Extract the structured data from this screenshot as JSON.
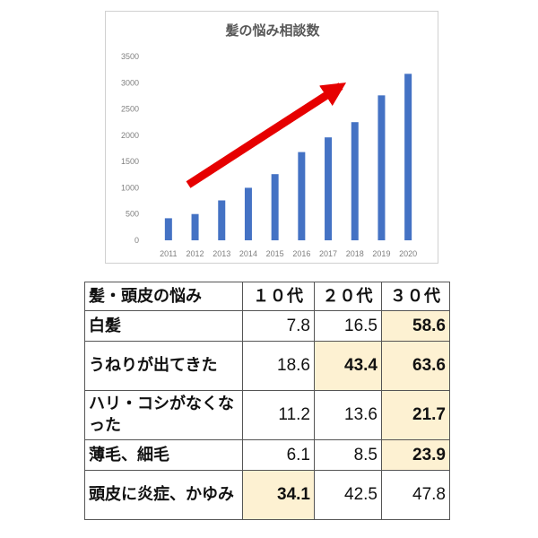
{
  "chart_data": {
    "type": "bar",
    "title": "髪の悩み相談数",
    "categories": [
      "2011",
      "2012",
      "2013",
      "2014",
      "2015",
      "2016",
      "2017",
      "2018",
      "2019",
      "2020"
    ],
    "values": [
      420,
      500,
      760,
      1000,
      1260,
      1680,
      1960,
      2250,
      2760,
      3170
    ],
    "ylim": [
      0,
      3500
    ],
    "yticks": [
      "0",
      "500",
      "1000",
      "1500",
      "2000",
      "2500",
      "3000",
      "3500"
    ],
    "grid": false,
    "bar_color": "#4472c4",
    "annotation": {
      "type": "arrow",
      "color": "#e60000",
      "meaning": "increasing trend"
    }
  },
  "table": {
    "headers": [
      "髪・頭皮の悩み",
      "１０代",
      "２０代",
      "３０代"
    ],
    "rows": [
      {
        "label": "白髪",
        "values": [
          "7.8",
          "16.5",
          "58.6"
        ],
        "highlight": [
          false,
          false,
          true
        ]
      },
      {
        "label": "うねりが出てきた",
        "values": [
          "18.6",
          "43.4",
          "63.6"
        ],
        "highlight": [
          false,
          true,
          true
        ]
      },
      {
        "label": "ハリ・コシがなくなった",
        "values": [
          "11.2",
          "13.6",
          "21.7"
        ],
        "highlight": [
          false,
          false,
          true
        ]
      },
      {
        "label": "薄毛、細毛",
        "values": [
          "6.1",
          "8.5",
          "23.9"
        ],
        "highlight": [
          false,
          false,
          true
        ]
      },
      {
        "label": "頭皮に炎症、かゆみ",
        "values": [
          "34.1",
          "42.5",
          "47.8"
        ],
        "highlight": [
          true,
          false,
          false
        ]
      }
    ],
    "highlight_color": "#fdf1d2"
  }
}
